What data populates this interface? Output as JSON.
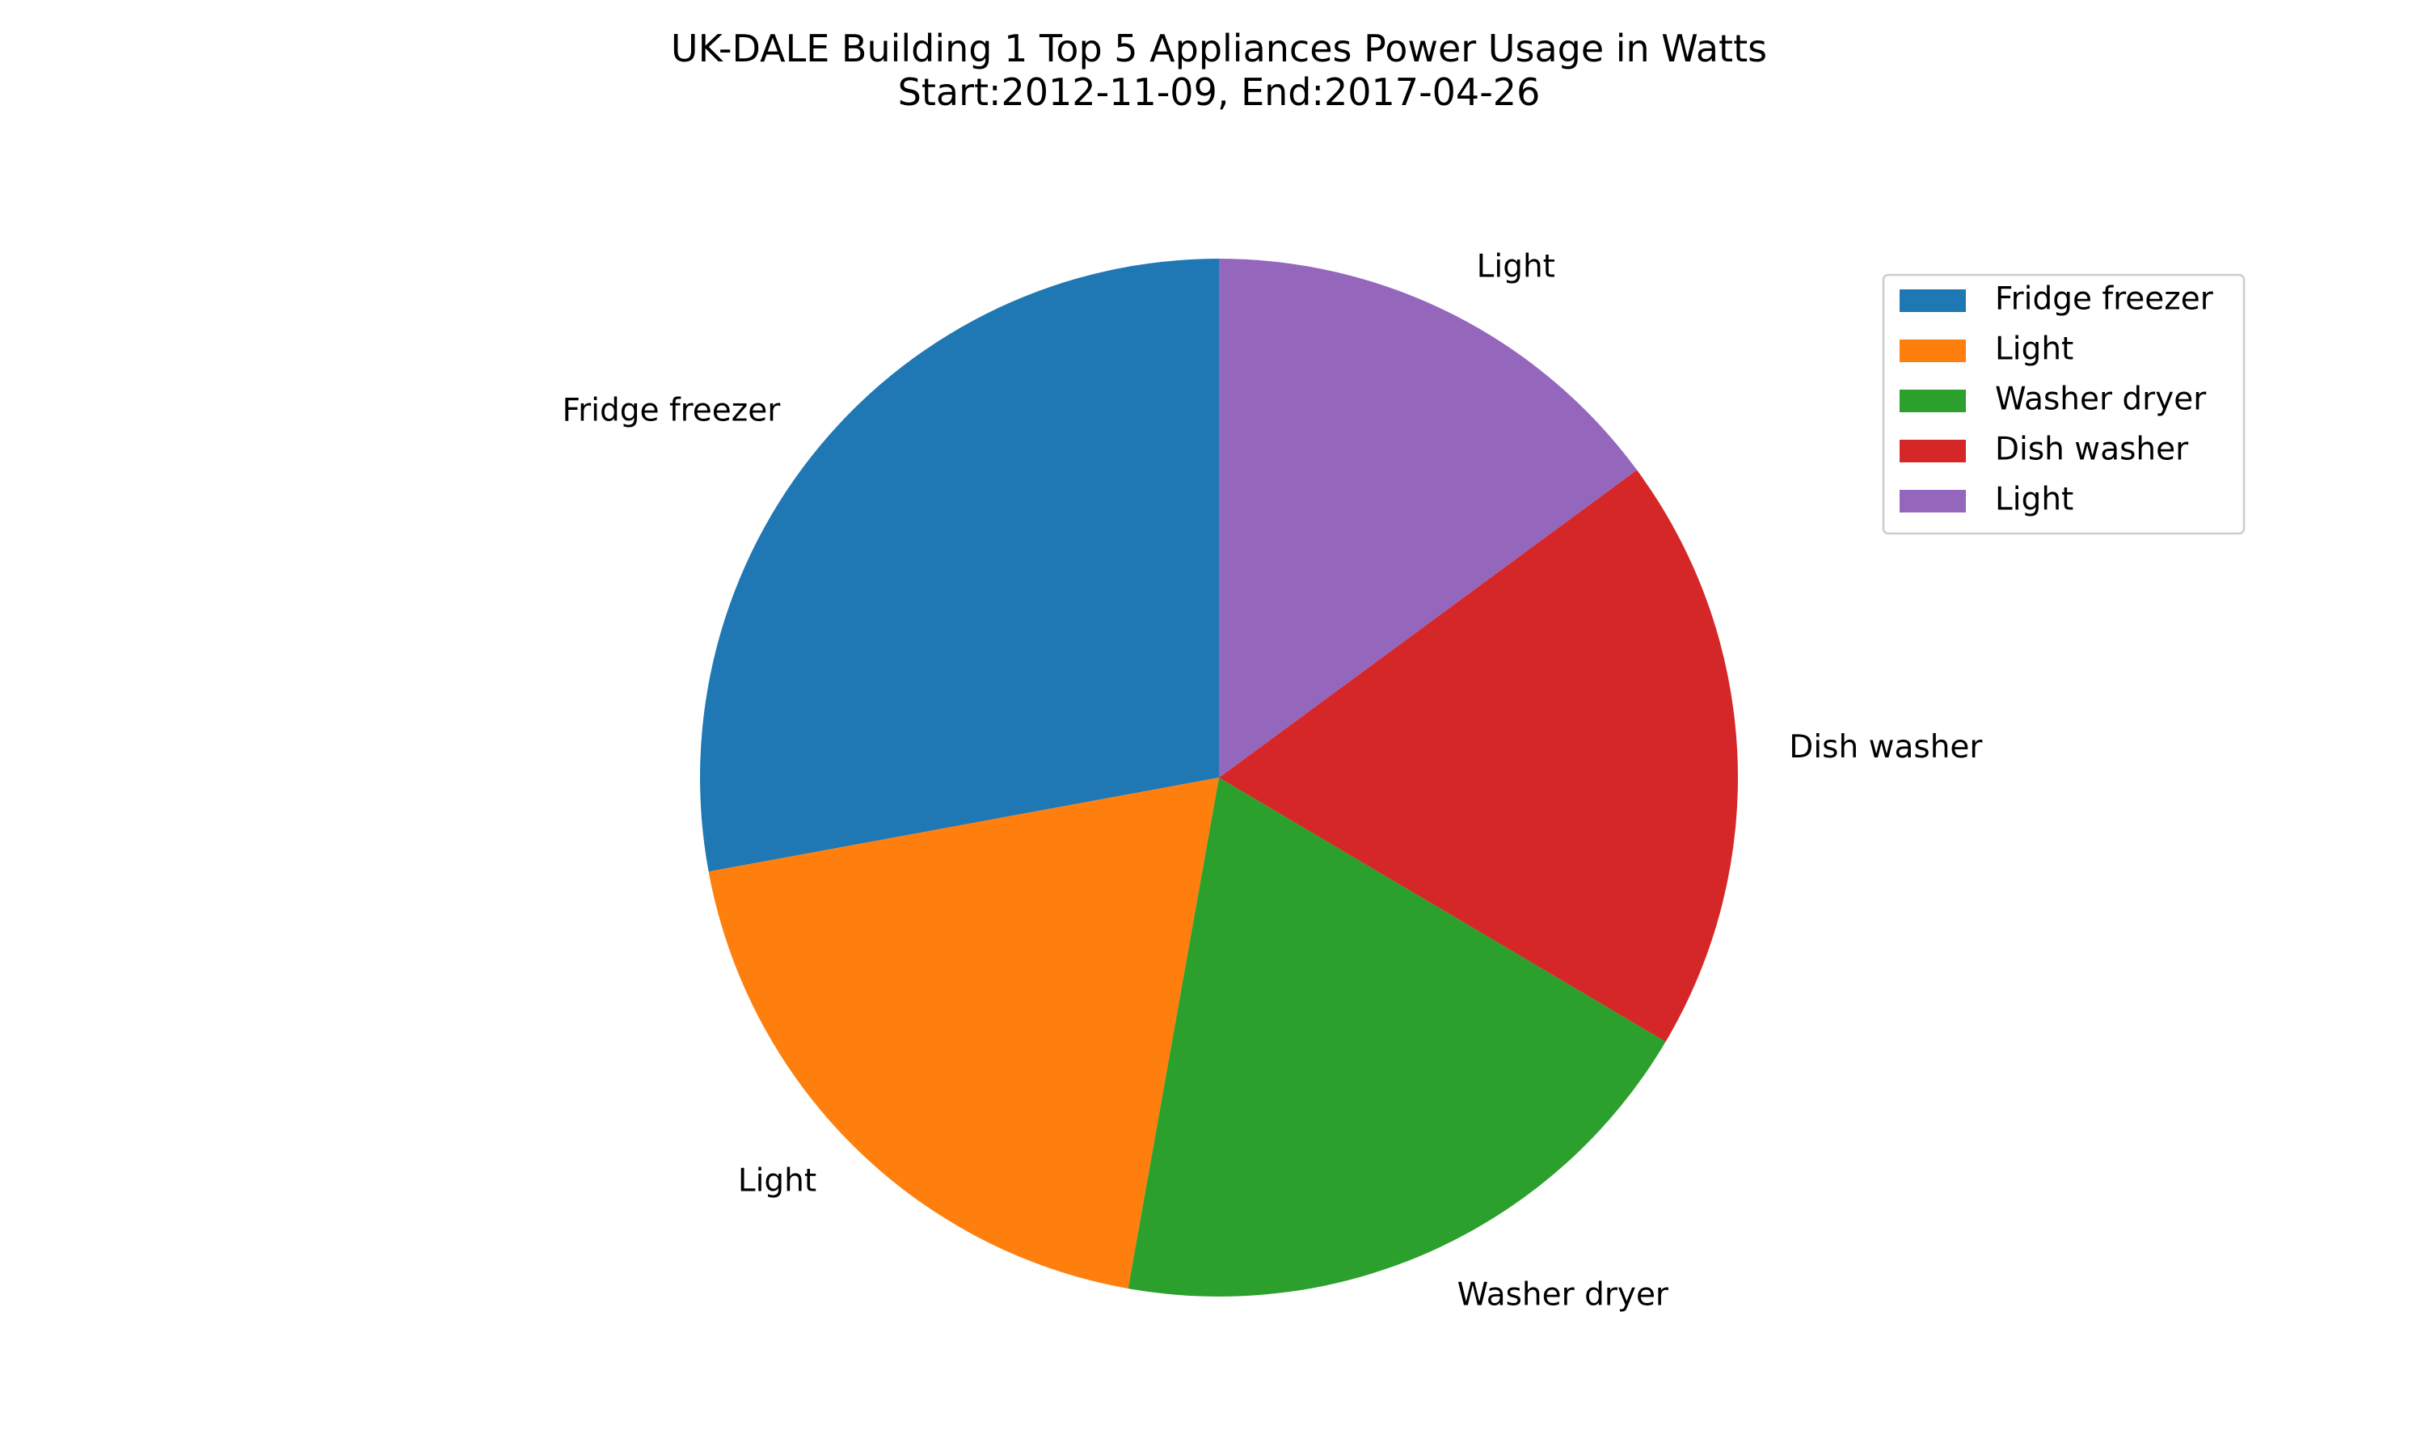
{
  "chart_data": {
    "type": "pie",
    "title": "UK-DALE Building 1 Top 5 Appliances Power Usage in Watts",
    "subtitle": "Start:2012-11-09, End:2017-04-26",
    "start_angle_deg": 90,
    "direction": "counterclockwise",
    "slices": [
      {
        "label": "Fridge freezer",
        "value": 27.9,
        "color": "#1f77b4"
      },
      {
        "label": "Light",
        "value": 19.3,
        "color": "#ff7f0e"
      },
      {
        "label": "Washer dryer",
        "value": 19.3,
        "color": "#2ca02c"
      },
      {
        "label": "Dish washer",
        "value": 18.6,
        "color": "#d62728"
      },
      {
        "label": "Light",
        "value": 14.9,
        "color": "#9467bd"
      }
    ],
    "legend": {
      "placement": "top-right",
      "entries": [
        "Fridge freezer",
        "Light",
        "Washer dryer",
        "Dish washer",
        "Light"
      ]
    }
  }
}
